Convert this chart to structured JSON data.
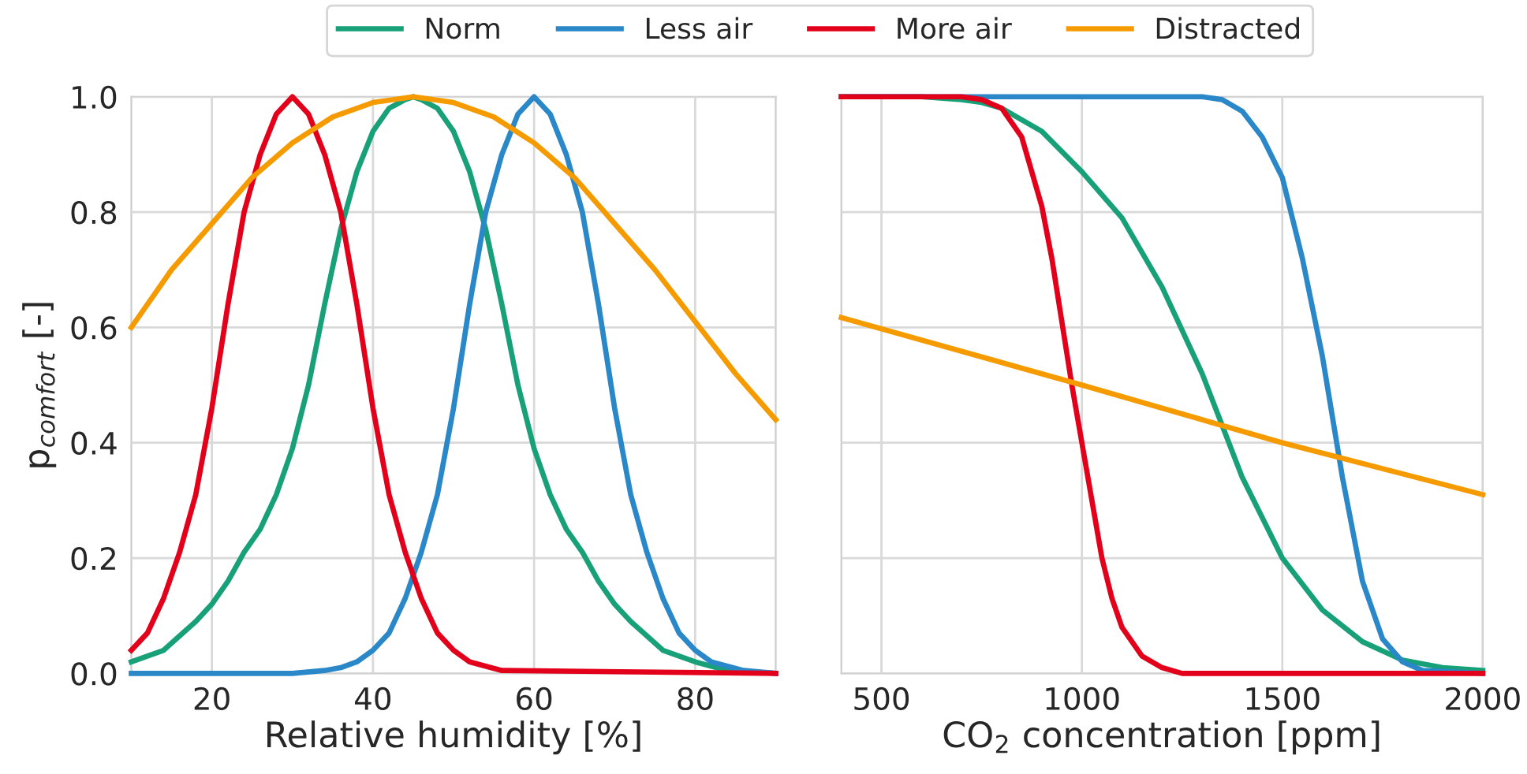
{
  "chart_data": [
    {
      "type": "line",
      "xlabel": "Relative humidity [%]",
      "ylabel": "p$_{comfort}$ [-]",
      "xlim": [
        10,
        90
      ],
      "xticks": [
        20,
        40,
        60,
        80
      ],
      "ylim": [
        0,
        1
      ],
      "yticks": [
        {
          "value": 0,
          "label": "0.0"
        },
        0.2,
        0.4,
        0.6,
        0.8,
        {
          "value": 1,
          "label": "1.0"
        }
      ],
      "grid": true,
      "legend": "top",
      "line_style": "solid",
      "series": [
        {
          "name": "Norm",
          "color": "#18a079",
          "x": [
            10,
            14,
            18,
            20,
            22,
            24,
            26,
            28,
            30,
            32,
            34,
            36,
            38,
            40,
            42,
            44,
            45,
            46,
            48,
            50,
            52,
            54,
            56,
            58,
            60,
            62,
            64,
            66,
            68,
            70,
            72,
            76,
            80,
            84,
            90
          ],
          "values": [
            0.02,
            0.04,
            0.09,
            0.12,
            0.16,
            0.21,
            0.25,
            0.31,
            0.39,
            0.5,
            0.64,
            0.77,
            0.87,
            0.94,
            0.98,
            0.995,
            1.0,
            0.995,
            0.98,
            0.94,
            0.87,
            0.77,
            0.64,
            0.5,
            0.39,
            0.31,
            0.25,
            0.21,
            0.16,
            0.12,
            0.09,
            0.04,
            0.02,
            0.005,
            0.0
          ]
        },
        {
          "name": "Less air",
          "color": "#2a88c8",
          "x": [
            10,
            30,
            34,
            36,
            38,
            40,
            42,
            44,
            46,
            48,
            50,
            52,
            54,
            56,
            58,
            60,
            62,
            64,
            66,
            68,
            70,
            72,
            74,
            76,
            78,
            80,
            82,
            86,
            90
          ],
          "values": [
            0.0,
            0.0,
            0.005,
            0.01,
            0.02,
            0.04,
            0.07,
            0.13,
            0.21,
            0.31,
            0.46,
            0.64,
            0.8,
            0.9,
            0.97,
            1.0,
            0.97,
            0.9,
            0.8,
            0.64,
            0.46,
            0.31,
            0.21,
            0.13,
            0.07,
            0.04,
            0.02,
            0.005,
            0.0
          ]
        },
        {
          "name": "More air",
          "color": "#e3001b",
          "x": [
            10,
            12,
            14,
            16,
            18,
            20,
            22,
            24,
            26,
            28,
            30,
            32,
            34,
            36,
            38,
            40,
            42,
            44,
            46,
            48,
            50,
            52,
            56,
            90
          ],
          "values": [
            0.04,
            0.07,
            0.13,
            0.21,
            0.31,
            0.46,
            0.64,
            0.8,
            0.9,
            0.97,
            1.0,
            0.97,
            0.9,
            0.8,
            0.64,
            0.46,
            0.31,
            0.21,
            0.13,
            0.07,
            0.04,
            0.02,
            0.005,
            0.0
          ]
        },
        {
          "name": "Distracted",
          "color": "#f59b00",
          "x": [
            10,
            15,
            20,
            25,
            30,
            35,
            40,
            45,
            50,
            55,
            60,
            65,
            70,
            75,
            80,
            85,
            90
          ],
          "values": [
            0.6,
            0.7,
            0.78,
            0.86,
            0.92,
            0.965,
            0.99,
            1.0,
            0.99,
            0.965,
            0.92,
            0.86,
            0.78,
            0.7,
            0.61,
            0.52,
            0.44
          ]
        }
      ]
    },
    {
      "type": "line",
      "xlabel": "CO$_{2}$ concentration [ppm]",
      "xlim": [
        400,
        2000
      ],
      "xticks": [
        500,
        1000,
        1500,
        2000
      ],
      "ylim": [
        0,
        1
      ],
      "yticks": [
        0,
        0.2,
        0.4,
        0.6,
        0.8,
        1
      ],
      "grid": true,
      "tick_labels": "x",
      "line_style": "solid",
      "series": [
        {
          "name": "Norm",
          "color": "#18a079",
          "x": [
            400,
            600,
            700,
            750,
            800,
            900,
            1000,
            1100,
            1200,
            1300,
            1350,
            1400,
            1500,
            1600,
            1700,
            1800,
            1900,
            2000
          ],
          "values": [
            1.0,
            1.0,
            0.995,
            0.99,
            0.98,
            0.94,
            0.87,
            0.79,
            0.67,
            0.52,
            0.43,
            0.34,
            0.2,
            0.11,
            0.055,
            0.023,
            0.01,
            0.005
          ]
        },
        {
          "name": "Less air",
          "color": "#2a88c8",
          "x": [
            400,
            1300,
            1350,
            1400,
            1450,
            1500,
            1550,
            1600,
            1650,
            1700,
            1750,
            1800,
            1850,
            2000
          ],
          "values": [
            1.0,
            1.0,
            0.995,
            0.975,
            0.93,
            0.86,
            0.72,
            0.55,
            0.34,
            0.16,
            0.06,
            0.02,
            0.005,
            0.0
          ]
        },
        {
          "name": "More air",
          "color": "#e3001b",
          "x": [
            400,
            700,
            750,
            800,
            850,
            900,
            925,
            950,
            975,
            1000,
            1025,
            1050,
            1075,
            1100,
            1150,
            1200,
            1250,
            2000
          ],
          "values": [
            1.0,
            1.0,
            0.995,
            0.98,
            0.93,
            0.81,
            0.72,
            0.61,
            0.5,
            0.4,
            0.3,
            0.2,
            0.13,
            0.08,
            0.03,
            0.01,
            0.0,
            0.0
          ]
        },
        {
          "name": "Distracted",
          "color": "#f59b00",
          "x": [
            400,
            1000,
            1500,
            2000
          ],
          "values": [
            0.617,
            0.5,
            0.4,
            0.31
          ]
        }
      ]
    }
  ]
}
